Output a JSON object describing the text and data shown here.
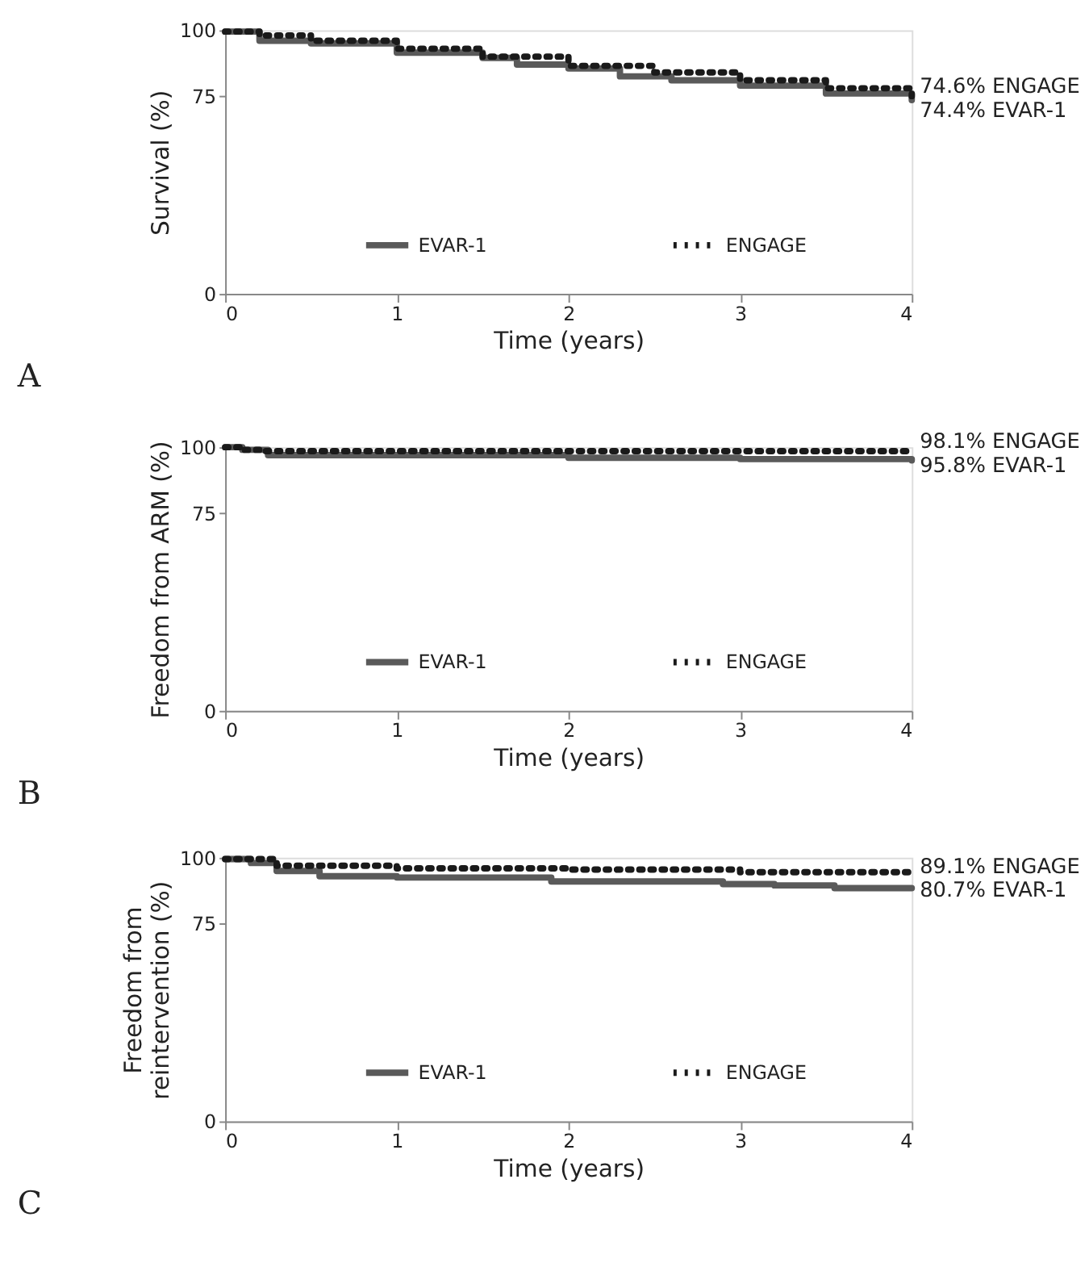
{
  "chart_data": [
    {
      "type": "step",
      "title": "A",
      "xlabel": "Time (years)",
      "ylabel": "Survival (%)",
      "xlim": [
        0,
        4
      ],
      "xticks": [
        0,
        1,
        2,
        3,
        4
      ],
      "ylim": [
        0,
        100
      ],
      "yticks": [
        0,
        75,
        100
      ],
      "grid": false,
      "legend": "bottom",
      "annotations": [
        "74.6% ENGAGE",
        "74.4% EVAR-1"
      ],
      "series": [
        {
          "name": "EVAR-1",
          "color": "#5a5a5a",
          "line_style": "solid",
          "x": [
            0,
            0.2,
            0.5,
            1.0,
            1.5,
            1.7,
            2.0,
            2.3,
            2.6,
            3.0,
            3.5,
            4.0
          ],
          "values": [
            99.5,
            96,
            95,
            91.5,
            89.5,
            87,
            85.5,
            82.5,
            81,
            79,
            76,
            73.5
          ]
        },
        {
          "name": "ENGAGE",
          "color": "#1a1a1a",
          "line_style": "dotted",
          "x": [
            0,
            0.2,
            0.5,
            1.0,
            1.5,
            2.0,
            2.5,
            3.0,
            3.5,
            4.0
          ],
          "values": [
            99.5,
            98,
            96,
            93,
            90,
            86.5,
            84,
            81,
            78,
            75
          ]
        }
      ]
    },
    {
      "type": "step",
      "title": "B",
      "xlabel": "Time (years)",
      "ylabel": "Freedom from ARM (%)",
      "xlim": [
        0,
        4
      ],
      "xticks": [
        0,
        1,
        2,
        3,
        4
      ],
      "ylim": [
        0,
        100
      ],
      "yticks": [
        0,
        75,
        100
      ],
      "grid": false,
      "legend": "bottom",
      "annotations": [
        "98.1% ENGAGE",
        "95.8% EVAR-1"
      ],
      "series": [
        {
          "name": "EVAR-1",
          "color": "#5a5a5a",
          "line_style": "solid",
          "x": [
            0,
            0.1,
            0.25,
            2.0,
            3.0,
            4.0
          ],
          "values": [
            100,
            99,
            97,
            96,
            95.5,
            95
          ]
        },
        {
          "name": "ENGAGE",
          "color": "#1a1a1a",
          "line_style": "dotted",
          "x": [
            0,
            0.1,
            0.2,
            4.0
          ],
          "values": [
            100,
            99,
            98.5,
            98.5
          ]
        }
      ]
    },
    {
      "type": "step",
      "title": "C",
      "xlabel": "Time (years)",
      "ylabel": "Freedom from reintervention (%)",
      "xlim": [
        0,
        4
      ],
      "xticks": [
        0,
        1,
        2,
        3,
        4
      ],
      "ylim": [
        0,
        100
      ],
      "yticks": [
        0,
        75,
        100
      ],
      "grid": false,
      "legend": "bottom",
      "annotations": [
        "89.1% ENGAGE",
        "80.7% EVAR-1"
      ],
      "series": [
        {
          "name": "EVAR-1",
          "color": "#5a5a5a",
          "line_style": "solid",
          "x": [
            0,
            0.15,
            0.3,
            0.55,
            1.0,
            1.9,
            2.9,
            3.2,
            3.55,
            4.0
          ],
          "values": [
            99.5,
            98,
            95,
            93,
            92.5,
            91,
            90,
            89.5,
            88.5,
            88.5
          ]
        },
        {
          "name": "ENGAGE",
          "color": "#1a1a1a",
          "line_style": "dotted",
          "x": [
            0,
            0.3,
            1.0,
            2.0,
            3.0,
            4.0
          ],
          "values": [
            99.5,
            97,
            96,
            95.5,
            94.5,
            93
          ]
        }
      ]
    }
  ]
}
